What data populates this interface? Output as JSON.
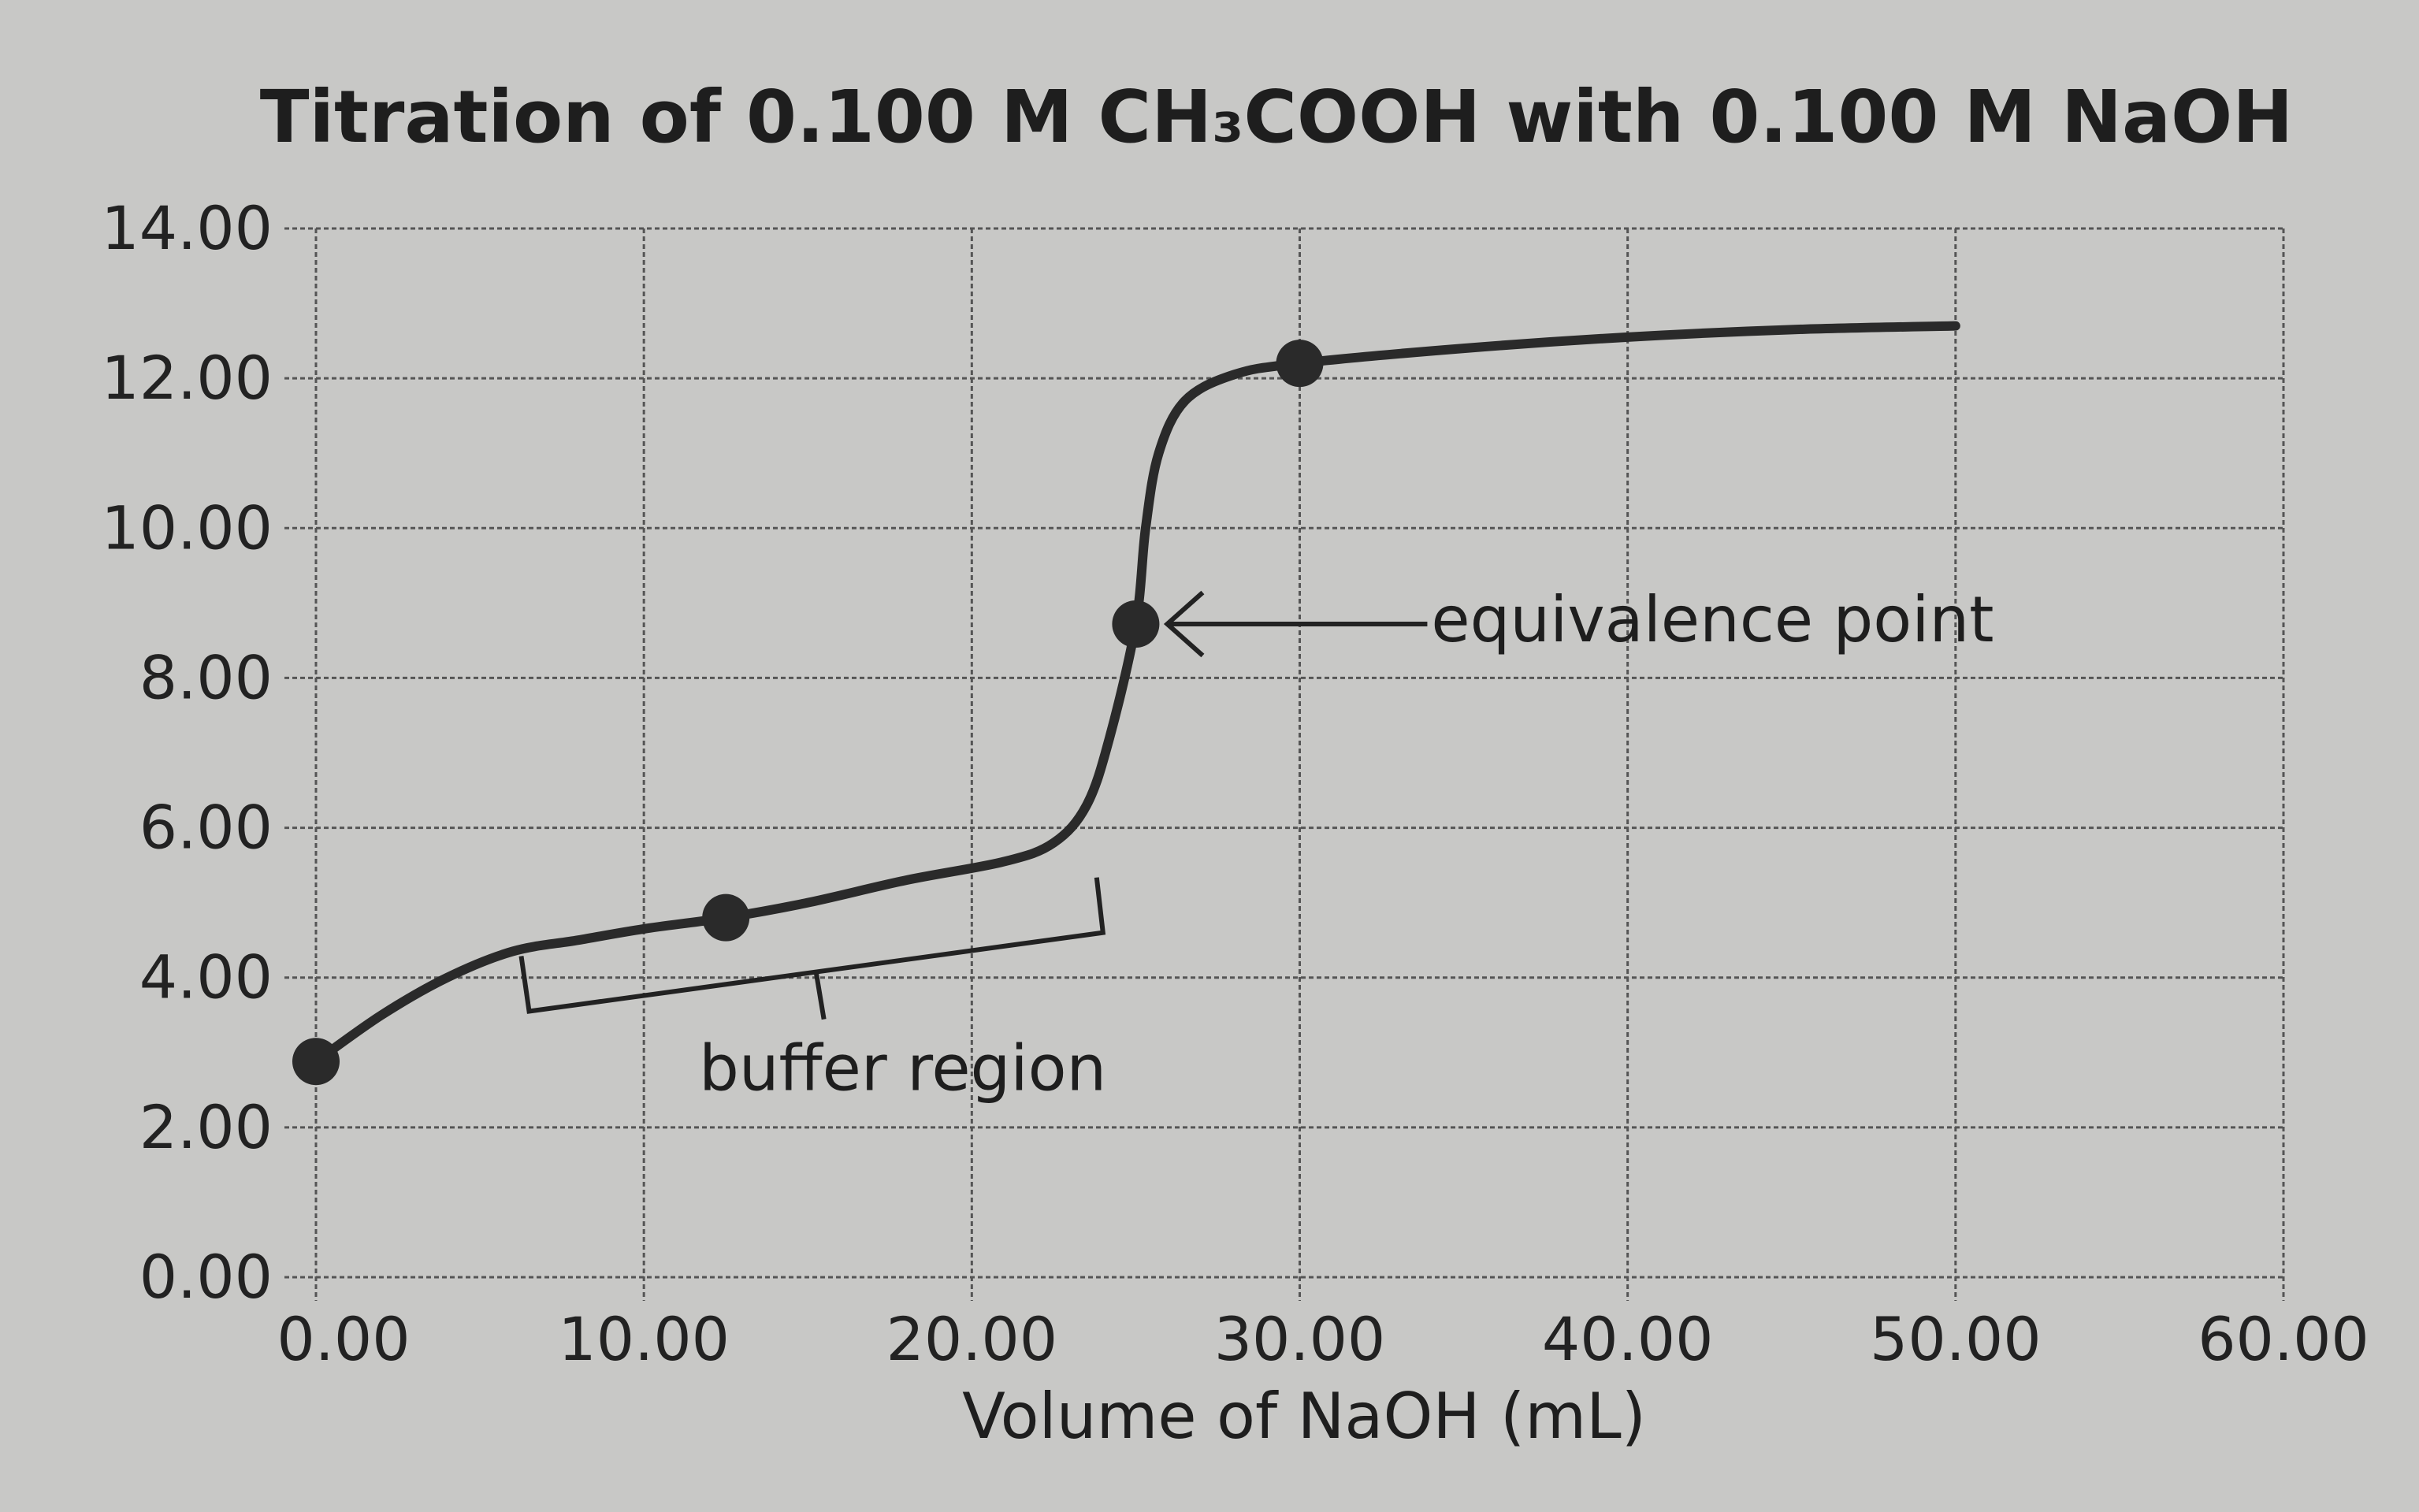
{
  "chart_data": {
    "type": "line",
    "title": "Titration of 0.100 M CH₃COOH with 0.100 M NaOH",
    "xlabel": "Volume of NaOH (mL)",
    "ylabel": "",
    "xlim": [
      0,
      60
    ],
    "ylim": [
      0,
      14
    ],
    "grid": true,
    "xticks": [
      "0.00",
      "10.00",
      "20.00",
      "30.00",
      "40.00",
      "50.00",
      "60.00"
    ],
    "yticks": [
      "0.00",
      "2.00",
      "4.00",
      "6.00",
      "8.00",
      "10.00",
      "12.00",
      "14.00"
    ],
    "series": [
      {
        "x": [
          0,
          2,
          4,
          6,
          8,
          10,
          12.5,
          15,
          18,
          21,
          22.5,
          23.5,
          24.2,
          25,
          25.3,
          25.7,
          26.5,
          28,
          30,
          35,
          40,
          45,
          50
        ],
        "y": [
          2.88,
          3.5,
          4.0,
          4.35,
          4.5,
          4.65,
          4.8,
          5.0,
          5.3,
          5.55,
          5.8,
          6.3,
          7.2,
          8.72,
          10.0,
          11.0,
          11.7,
          12.05,
          12.2,
          12.4,
          12.55,
          12.65,
          12.7
        ]
      }
    ],
    "marked_points": [
      {
        "x": 0,
        "y": 2.88
      },
      {
        "x": 12.5,
        "y": 4.8
      },
      {
        "x": 25,
        "y": 8.72
      },
      {
        "x": 30,
        "y": 12.2
      }
    ],
    "annotations": [
      {
        "text": "equivalence point",
        "x": 25,
        "y": 8.72
      },
      {
        "text": "buffer region",
        "x_range": [
          6.5,
          24
        ]
      }
    ],
    "colors": {
      "line": "#2a2a2a",
      "background": "#c8c8c6",
      "grid": "#555555"
    }
  }
}
